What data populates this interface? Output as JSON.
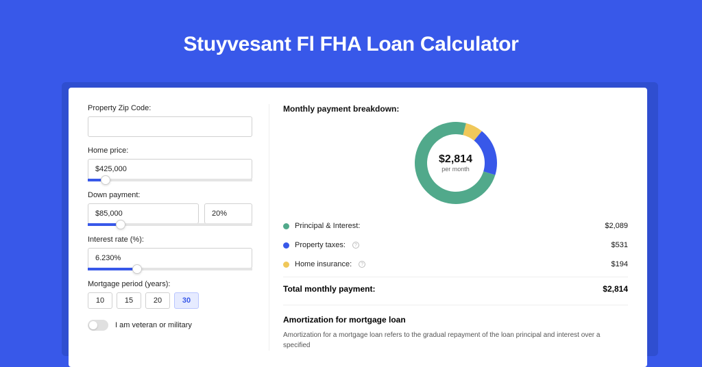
{
  "page": {
    "background_color": "#3858e9",
    "shadow_color": "#2f4ed0",
    "card_color": "#ffffff",
    "title": "Stuyvesant Fl FHA Loan Calculator",
    "title_color": "#ffffff",
    "title_fontsize": 30
  },
  "form": {
    "zip": {
      "label": "Property Zip Code:",
      "value": ""
    },
    "home_price": {
      "label": "Home price:",
      "value": "$425,000",
      "slider_percent": 11
    },
    "down_payment": {
      "label": "Down payment:",
      "value": "$85,000",
      "percent_value": "20%",
      "slider_percent": 20
    },
    "interest_rate": {
      "label": "Interest rate (%):",
      "value": "6.230%",
      "slider_percent": 30
    },
    "mortgage_period": {
      "label": "Mortgage period (years):",
      "options": [
        "10",
        "15",
        "20",
        "30"
      ],
      "selected_index": 3
    },
    "veteran": {
      "label": "I am veteran or military",
      "on": false
    }
  },
  "breakdown": {
    "title": "Monthly payment breakdown:",
    "donut": {
      "center_amount": "$2,814",
      "center_sub": "per month",
      "slices": [
        {
          "key": "principal_interest",
          "value": 2089,
          "color": "#51a98b"
        },
        {
          "key": "property_taxes",
          "value": 531,
          "color": "#3858e9"
        },
        {
          "key": "home_insurance",
          "value": 194,
          "color": "#f0c85a"
        }
      ],
      "ring_thickness": 18,
      "outer_radius": 60
    },
    "items": [
      {
        "label": "Principal & Interest:",
        "value": "$2,089",
        "color": "#51a98b",
        "info": false
      },
      {
        "label": "Property taxes:",
        "value": "$531",
        "color": "#3858e9",
        "info": true
      },
      {
        "label": "Home insurance:",
        "value": "$194",
        "color": "#f0c85a",
        "info": true
      }
    ],
    "total": {
      "label": "Total monthly payment:",
      "value": "$2,814"
    }
  },
  "amortization": {
    "title": "Amortization for mortgage loan",
    "text": "Amortization for a mortgage loan refers to the gradual repayment of the loan principal and interest over a specified"
  }
}
